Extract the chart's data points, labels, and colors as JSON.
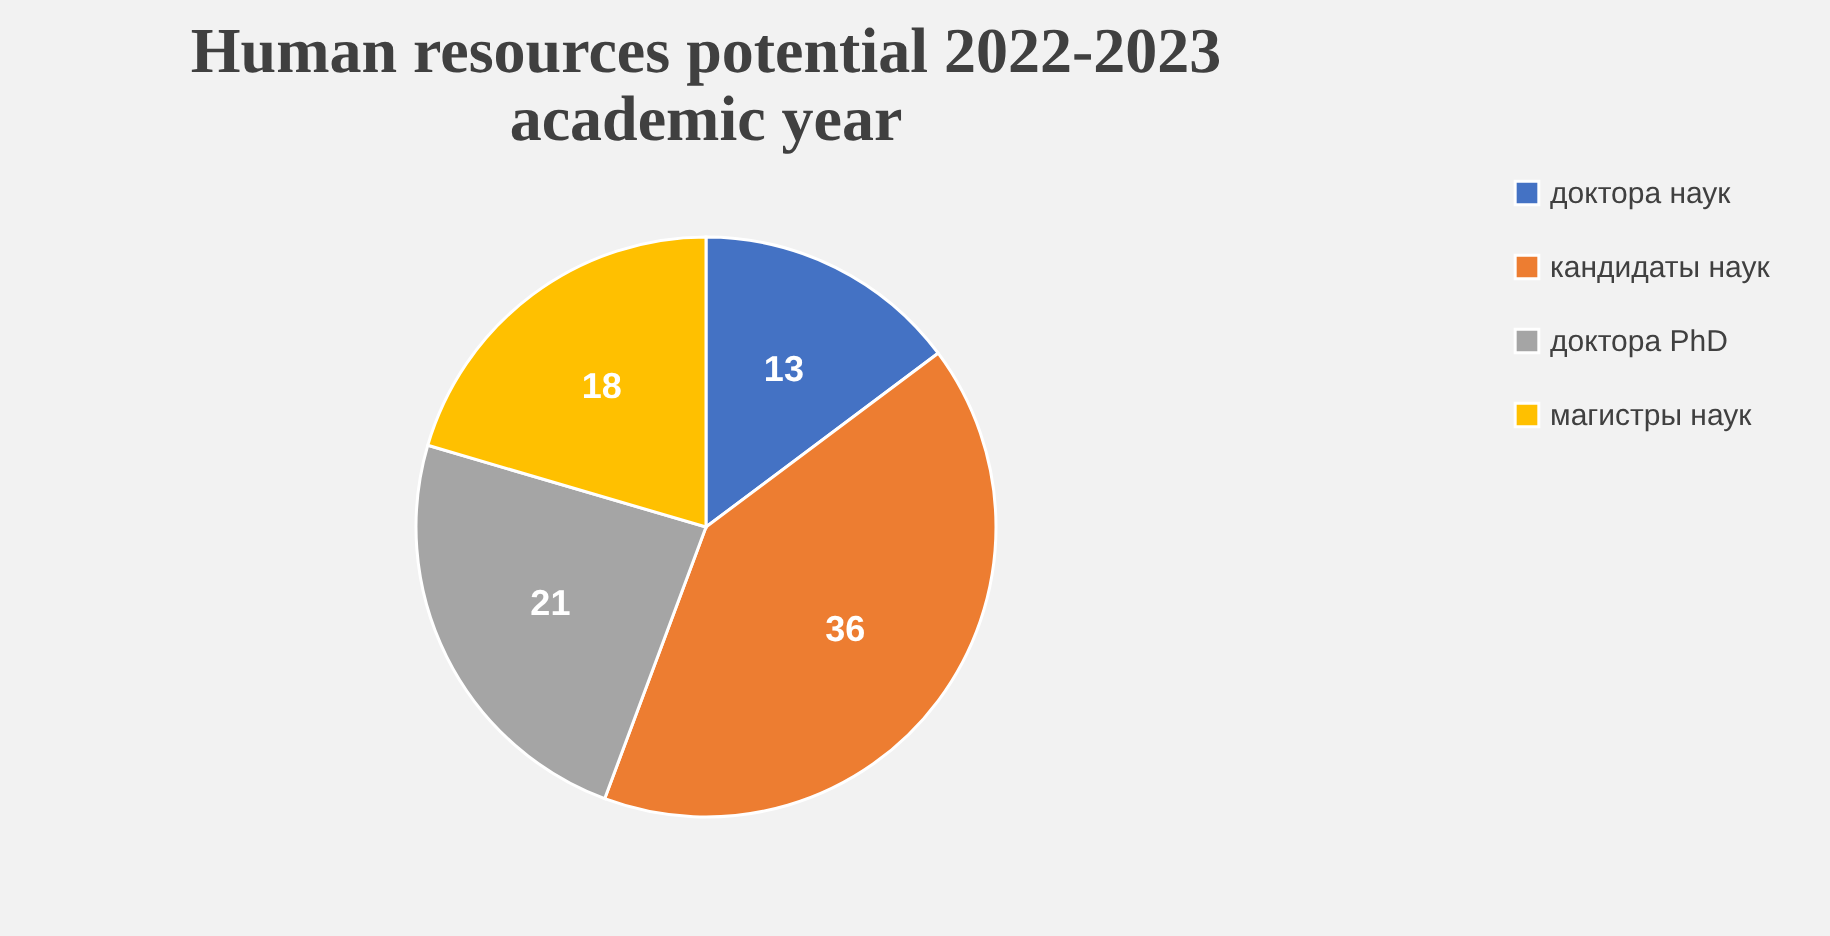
{
  "chart_data": {
    "type": "pie",
    "title": "Human resources potential 2022-2023\nacademic year",
    "categories": [
      "доктора наук",
      "кандидаты наук",
      "доктора PhD",
      "магистры наук"
    ],
    "values": [
      13,
      36,
      21,
      18
    ],
    "colors": [
      "#4472c4",
      "#ed7d31",
      "#a5a5a5",
      "#ffc000"
    ],
    "data_labels": true,
    "legend": "right"
  }
}
